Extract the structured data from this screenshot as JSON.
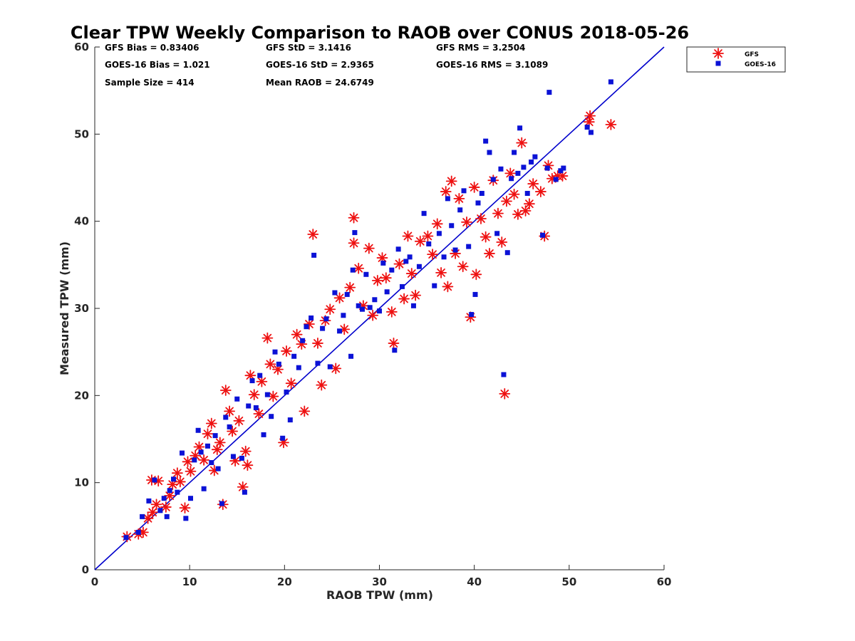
{
  "chart_data": {
    "type": "scatter",
    "title": "Clear TPW Weekly Comparison to RAOB over CONUS 2018-05-26",
    "xlabel": "RAOB TPW (mm)",
    "ylabel": "Measured TPW (mm)",
    "xlim": [
      0,
      60
    ],
    "ylim": [
      0,
      60
    ],
    "xticks": [
      "0",
      "10",
      "20",
      "30",
      "40",
      "50",
      "60"
    ],
    "yticks": [
      "0",
      "10",
      "20",
      "30",
      "40",
      "50",
      "60"
    ],
    "legend_position": "top-right-outside",
    "reference_line": {
      "name": "1:1 line",
      "x": [
        0,
        60
      ],
      "y": [
        0,
        60
      ],
      "color": "#0000cc"
    },
    "stats": {
      "gfs_bias": "GFS Bias = 0.83406",
      "gfs_std": "GFS StD = 3.1416",
      "gfs_rms": "GFS RMS = 3.2504",
      "goes_bias": "GOES-16 Bias = 1.021",
      "goes_std": "GOES-16 StD = 2.9365",
      "goes_rms": "GOES-16 RMS = 3.1089",
      "sample_size": "Sample Size = 414",
      "mean_raob": "Mean RAOB = 24.6749"
    },
    "series": [
      {
        "name": "GFS",
        "marker": "asterisk",
        "color": "#ee1111",
        "points": [
          [
            3.4,
            3.8
          ],
          [
            4.6,
            4.1
          ],
          [
            5.1,
            4.3
          ],
          [
            5.6,
            5.9
          ],
          [
            6.1,
            6.6
          ],
          [
            6.5,
            7.5
          ],
          [
            6.0,
            10.3
          ],
          [
            6.7,
            10.2
          ],
          [
            7.5,
            7.2
          ],
          [
            7.9,
            8.5
          ],
          [
            8.2,
            9.8
          ],
          [
            8.7,
            11.1
          ],
          [
            9.0,
            10.1
          ],
          [
            9.5,
            7.1
          ],
          [
            9.8,
            12.4
          ],
          [
            10.1,
            11.3
          ],
          [
            10.6,
            13.1
          ],
          [
            11.0,
            14.1
          ],
          [
            11.5,
            12.6
          ],
          [
            11.9,
            15.6
          ],
          [
            12.3,
            16.8
          ],
          [
            12.6,
            11.4
          ],
          [
            12.9,
            13.8
          ],
          [
            13.2,
            14.6
          ],
          [
            13.5,
            7.5
          ],
          [
            13.8,
            20.6
          ],
          [
            14.2,
            18.2
          ],
          [
            14.5,
            15.9
          ],
          [
            14.8,
            12.5
          ],
          [
            15.2,
            17.1
          ],
          [
            15.6,
            9.5
          ],
          [
            15.9,
            13.6
          ],
          [
            16.1,
            12.0
          ],
          [
            16.4,
            22.3
          ],
          [
            16.8,
            20.1
          ],
          [
            17.3,
            17.9
          ],
          [
            17.6,
            21.6
          ],
          [
            18.2,
            26.6
          ],
          [
            18.5,
            23.6
          ],
          [
            18.8,
            19.9
          ],
          [
            19.3,
            23.0
          ],
          [
            19.9,
            14.6
          ],
          [
            20.2,
            25.1
          ],
          [
            20.7,
            21.4
          ],
          [
            21.3,
            27.0
          ],
          [
            21.8,
            25.9
          ],
          [
            22.1,
            18.2
          ],
          [
            22.6,
            28.2
          ],
          [
            23.0,
            38.5
          ],
          [
            23.5,
            26.0
          ],
          [
            23.9,
            21.2
          ],
          [
            24.3,
            28.6
          ],
          [
            24.8,
            29.9
          ],
          [
            25.4,
            23.1
          ],
          [
            25.8,
            31.2
          ],
          [
            26.3,
            27.6
          ],
          [
            26.9,
            32.4
          ],
          [
            27.3,
            40.4
          ],
          [
            27.3,
            37.5
          ],
          [
            27.8,
            34.6
          ],
          [
            28.3,
            30.3
          ],
          [
            28.9,
            36.9
          ],
          [
            29.3,
            29.2
          ],
          [
            29.8,
            33.2
          ],
          [
            30.3,
            35.8
          ],
          [
            30.7,
            33.5
          ],
          [
            31.3,
            29.6
          ],
          [
            31.5,
            26.0
          ],
          [
            32.1,
            35.1
          ],
          [
            32.6,
            31.1
          ],
          [
            33.0,
            38.3
          ],
          [
            33.4,
            34.0
          ],
          [
            33.8,
            31.5
          ],
          [
            34.3,
            37.7
          ],
          [
            35.1,
            38.3
          ],
          [
            35.6,
            36.2
          ],
          [
            36.1,
            39.7
          ],
          [
            36.5,
            34.1
          ],
          [
            37.0,
            43.4
          ],
          [
            37.2,
            32.5
          ],
          [
            37.6,
            44.6
          ],
          [
            38.0,
            36.3
          ],
          [
            38.4,
            42.6
          ],
          [
            38.8,
            34.8
          ],
          [
            39.2,
            39.9
          ],
          [
            39.6,
            29.0
          ],
          [
            40.0,
            43.9
          ],
          [
            40.2,
            33.9
          ],
          [
            40.7,
            40.3
          ],
          [
            41.2,
            38.2
          ],
          [
            41.6,
            36.3
          ],
          [
            42.0,
            44.7
          ],
          [
            42.5,
            40.9
          ],
          [
            42.9,
            37.6
          ],
          [
            43.2,
            20.2
          ],
          [
            43.4,
            42.3
          ],
          [
            43.8,
            45.5
          ],
          [
            44.2,
            43.1
          ],
          [
            44.6,
            40.8
          ],
          [
            45.0,
            49.0
          ],
          [
            45.4,
            41.2
          ],
          [
            45.8,
            42.0
          ],
          [
            46.2,
            44.3
          ],
          [
            47.0,
            43.4
          ],
          [
            47.4,
            38.3
          ],
          [
            47.8,
            46.4
          ],
          [
            48.2,
            44.9
          ],
          [
            48.8,
            45.2
          ],
          [
            49.3,
            45.2
          ],
          [
            52.1,
            51.4
          ],
          [
            52.2,
            52.1
          ],
          [
            54.4,
            51.1
          ]
        ]
      },
      {
        "name": "GOES-16",
        "marker": "square",
        "color": "#0b12d6",
        "points": [
          [
            3.3,
            3.7
          ],
          [
            4.6,
            4.3
          ],
          [
            5.0,
            6.1
          ],
          [
            5.7,
            7.9
          ],
          [
            6.3,
            10.3
          ],
          [
            6.9,
            6.8
          ],
          [
            7.3,
            8.2
          ],
          [
            7.6,
            6.1
          ],
          [
            7.9,
            9.1
          ],
          [
            8.3,
            10.4
          ],
          [
            8.7,
            8.9
          ],
          [
            9.2,
            13.4
          ],
          [
            9.6,
            5.9
          ],
          [
            10.1,
            8.2
          ],
          [
            10.5,
            12.6
          ],
          [
            10.9,
            16.0
          ],
          [
            11.2,
            13.5
          ],
          [
            11.5,
            9.3
          ],
          [
            11.9,
            14.2
          ],
          [
            12.3,
            12.3
          ],
          [
            12.7,
            15.4
          ],
          [
            13.0,
            11.6
          ],
          [
            13.4,
            7.6
          ],
          [
            13.8,
            17.5
          ],
          [
            14.2,
            16.4
          ],
          [
            14.6,
            13.0
          ],
          [
            15.0,
            19.6
          ],
          [
            15.5,
            12.8
          ],
          [
            15.8,
            8.9
          ],
          [
            16.2,
            18.8
          ],
          [
            16.6,
            21.7
          ],
          [
            17.0,
            18.6
          ],
          [
            17.4,
            22.3
          ],
          [
            17.8,
            15.5
          ],
          [
            18.2,
            20.1
          ],
          [
            18.6,
            17.6
          ],
          [
            19.0,
            25.0
          ],
          [
            19.4,
            23.6
          ],
          [
            19.8,
            15.1
          ],
          [
            20.2,
            20.4
          ],
          [
            20.6,
            17.2
          ],
          [
            21.0,
            24.5
          ],
          [
            21.5,
            23.2
          ],
          [
            21.9,
            26.3
          ],
          [
            22.3,
            27.9
          ],
          [
            22.8,
            28.9
          ],
          [
            23.1,
            36.1
          ],
          [
            23.5,
            23.7
          ],
          [
            24.0,
            27.7
          ],
          [
            24.4,
            28.8
          ],
          [
            24.8,
            23.3
          ],
          [
            25.3,
            31.8
          ],
          [
            25.8,
            27.4
          ],
          [
            26.2,
            29.2
          ],
          [
            26.6,
            31.6
          ],
          [
            27.0,
            24.5
          ],
          [
            27.2,
            34.4
          ],
          [
            27.4,
            38.7
          ],
          [
            27.8,
            30.3
          ],
          [
            28.2,
            29.9
          ],
          [
            28.6,
            33.9
          ],
          [
            29.0,
            30.1
          ],
          [
            29.5,
            31.0
          ],
          [
            30.0,
            29.7
          ],
          [
            30.4,
            35.2
          ],
          [
            30.8,
            31.9
          ],
          [
            31.3,
            34.4
          ],
          [
            31.6,
            25.2
          ],
          [
            32.0,
            36.8
          ],
          [
            32.4,
            32.5
          ],
          [
            32.8,
            35.4
          ],
          [
            33.2,
            35.9
          ],
          [
            33.6,
            30.3
          ],
          [
            34.2,
            34.8
          ],
          [
            34.7,
            40.9
          ],
          [
            35.2,
            37.4
          ],
          [
            35.8,
            32.6
          ],
          [
            36.3,
            38.6
          ],
          [
            36.8,
            35.9
          ],
          [
            37.2,
            42.6
          ],
          [
            37.6,
            39.5
          ],
          [
            38.0,
            36.7
          ],
          [
            38.5,
            41.3
          ],
          [
            38.9,
            43.5
          ],
          [
            39.4,
            37.1
          ],
          [
            39.7,
            29.3
          ],
          [
            40.1,
            31.6
          ],
          [
            40.4,
            42.1
          ],
          [
            40.8,
            43.2
          ],
          [
            41.2,
            49.2
          ],
          [
            41.6,
            47.9
          ],
          [
            42.0,
            44.8
          ],
          [
            42.4,
            38.6
          ],
          [
            42.8,
            46.0
          ],
          [
            43.1,
            22.4
          ],
          [
            43.5,
            36.4
          ],
          [
            43.9,
            44.9
          ],
          [
            44.2,
            47.9
          ],
          [
            44.6,
            45.5
          ],
          [
            44.8,
            50.7
          ],
          [
            45.2,
            46.2
          ],
          [
            45.6,
            43.2
          ],
          [
            46.0,
            46.8
          ],
          [
            46.4,
            47.4
          ],
          [
            47.2,
            38.4
          ],
          [
            47.7,
            46.1
          ],
          [
            47.9,
            54.8
          ],
          [
            48.6,
            44.8
          ],
          [
            49.1,
            45.8
          ],
          [
            49.4,
            46.1
          ],
          [
            51.9,
            50.8
          ],
          [
            52.3,
            50.2
          ],
          [
            54.4,
            56.0
          ]
        ]
      }
    ]
  }
}
